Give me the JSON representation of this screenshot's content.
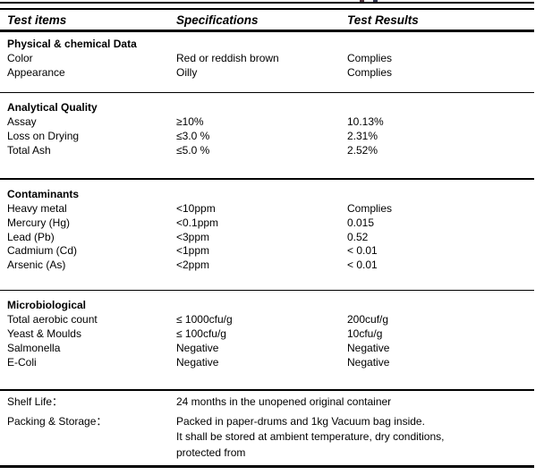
{
  "table": {
    "headers": {
      "items": "Test items",
      "specifications": "Specifications",
      "results": "Test Results"
    },
    "sections": [
      {
        "title": "Physical & chemical Data",
        "rows": [
          {
            "item": "Color",
            "spec": "Red or reddish brown",
            "result": "Complies"
          },
          {
            "item": "Appearance",
            "spec": "Oilly",
            "result": "Complies"
          }
        ]
      },
      {
        "title": "Analytical Quality",
        "rows": [
          {
            "item": "Assay",
            "spec": "≥10%",
            "result": "10.13%"
          },
          {
            "item": "Loss on Drying",
            "spec": "≤3.0 %",
            "result": "2.31%"
          },
          {
            "item": "Total Ash",
            "spec": "≤5.0 %",
            "result": "2.52%"
          }
        ]
      },
      {
        "title": "Contaminants",
        "rows": [
          {
            "item": "Heavy metal",
            "spec": "<10ppm",
            "result": "Complies"
          },
          {
            "item": "Mercury (Hg)",
            "spec": "<0.1ppm",
            "result": "0.015"
          },
          {
            "item": "Lead (Pb)",
            "spec": "<3ppm",
            "result": "0.52"
          },
          {
            "item": "Cadmium (Cd)",
            "spec": "<1ppm",
            "result": "< 0.01"
          },
          {
            "item": "Arsenic (As)",
            "spec": "<2ppm",
            "result": "< 0.01"
          }
        ]
      },
      {
        "title": "Microbiological",
        "rows": [
          {
            "item": "Total aerobic count",
            "spec": "≤ 1000cfu/g",
            "result": "200cuf/g"
          },
          {
            "item": "Yeast & Moulds",
            "spec": "≤ 100cfu/g",
            "result": "10cfu/g"
          },
          {
            "item": "Salmonella",
            "spec": "Negative",
            "result": "Negative"
          },
          {
            "item": "E-Coli",
            "spec": "Negative",
            "result": "Negative"
          }
        ]
      }
    ]
  },
  "footer": {
    "shelf_life_label": "Shelf Life：",
    "shelf_life_value": "24 months in the unopened original container",
    "packing_label": "Packing & Storage：",
    "packing_lines": [
      "Packed in paper-drums and 1kg Vacuum bag inside.",
      "It shall be stored at ambient temperature, dry conditions,",
      "protected from"
    ]
  },
  "colors": {
    "text": "#000000",
    "background": "#ffffff",
    "rule": "#000000"
  }
}
